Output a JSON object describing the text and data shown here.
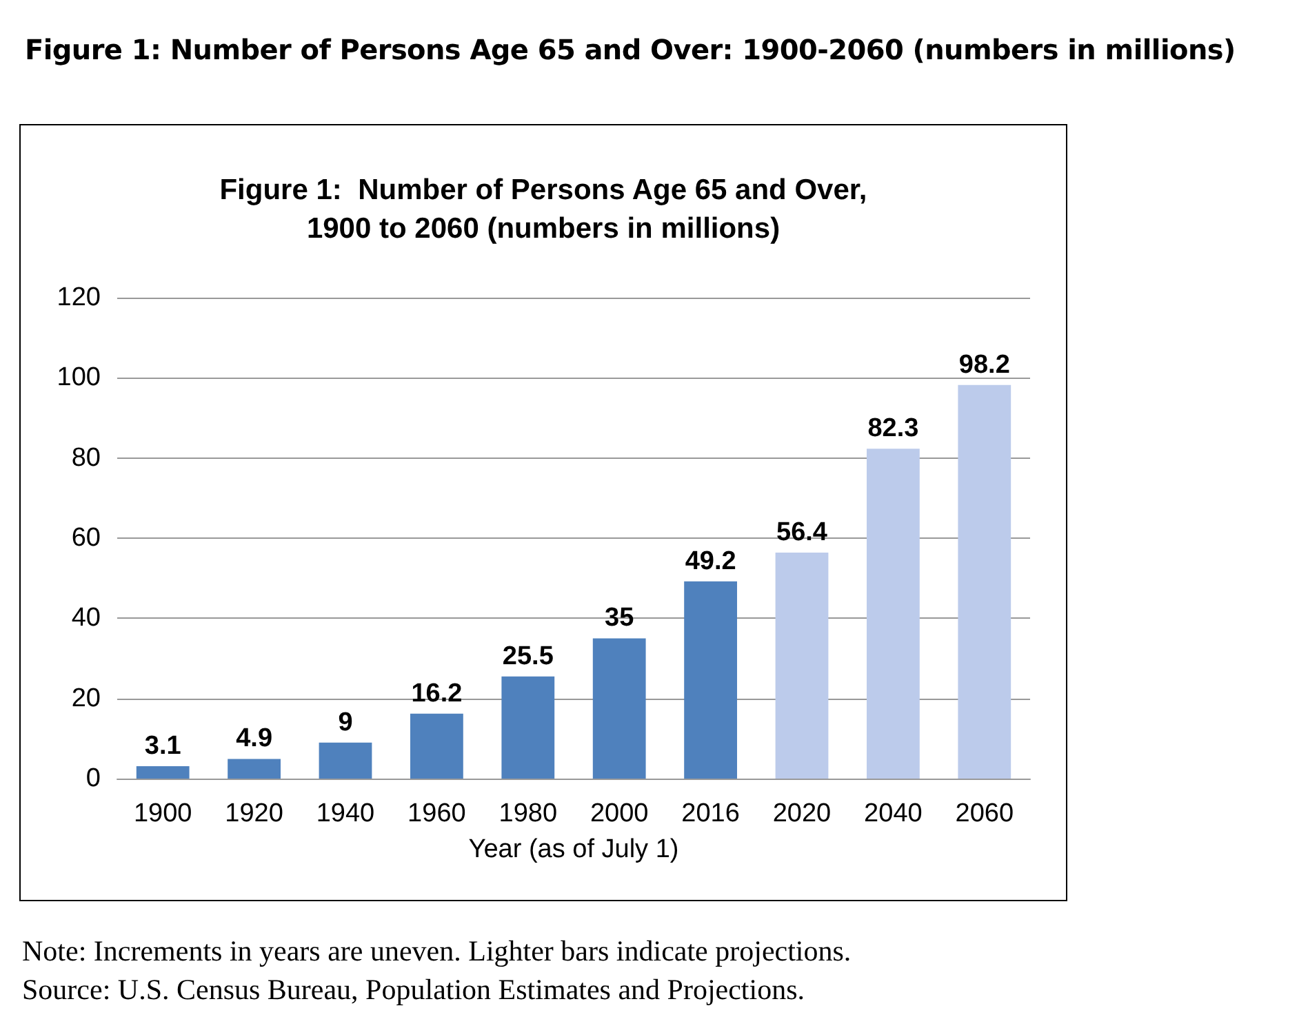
{
  "chart_data": {
    "type": "bar",
    "title": "Figure 1:  Number of Persons Age 65 and Over:  1900-2060 (numbers in millions)",
    "subtitle": "Figure 1:  Number of Persons Age 65 and Over,\n1900 to 2060 (numbers in millions)",
    "xlabel": "Year (as of July 1)",
    "categories": [
      "1900",
      "1920",
      "1940",
      "1960",
      "1980",
      "2000",
      "2016",
      "2020",
      "2040",
      "2060"
    ],
    "values": [
      3.1,
      4.9,
      9,
      16.2,
      25.5,
      35,
      49.2,
      56.4,
      82.3,
      98.2
    ],
    "colors": [
      "#4f81bd",
      "#4f81bd",
      "#4f81bd",
      "#4f81bd",
      "#4f81bd",
      "#4f81bd",
      "#4f81bd",
      "#bccbeb",
      "#bccbeb",
      "#bccbeb"
    ],
    "ylim": [
      0,
      120
    ],
    "yticks": [
      0,
      20,
      40,
      60,
      80,
      100,
      120
    ],
    "grid": "y",
    "data_labels": true,
    "annotations": [
      "Note: Increments in years are uneven. Lighter bars indicate projections.",
      "Source: U.S. Census Bureau, Population Estimates and Projections."
    ]
  }
}
